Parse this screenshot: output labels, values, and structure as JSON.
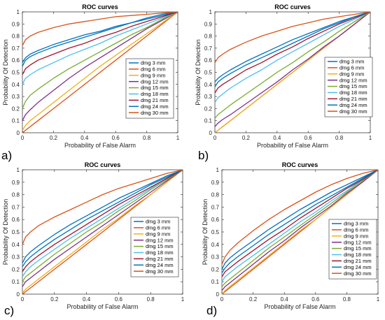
{
  "chart_data": [
    {
      "type": "line",
      "panel_label": "a)",
      "title": "ROC curves",
      "xlabel": "Probability of False Alarm",
      "ylabel": "Probability Of Detection",
      "xlim": [
        0,
        1
      ],
      "ylim": [
        0,
        1
      ],
      "xticks": [
        "0",
        "0.2",
        "0.4",
        "0.6",
        "0.8",
        "1"
      ],
      "yticks": [
        "0",
        "0.1",
        "0.2",
        "0.3",
        "0.4",
        "0.5",
        "0.6",
        "0.7",
        "0.8",
        "0.9",
        "1"
      ],
      "grid": false,
      "legend_position": "right",
      "x": [
        0,
        0.02,
        0.05,
        0.1,
        0.2,
        0.3,
        0.4,
        0.5,
        0.6,
        0.7,
        0.8,
        0.9,
        1
      ],
      "series": [
        {
          "name": "dmg 3 mm",
          "color": "#0072BD",
          "values": [
            0.55,
            0.6,
            0.63,
            0.66,
            0.71,
            0.75,
            0.79,
            0.83,
            0.87,
            0.91,
            0.94,
            0.97,
            1
          ]
        },
        {
          "name": "dmg 6 mm",
          "color": "#D95319",
          "values": [
            0,
            0.02,
            0.05,
            0.1,
            0.2,
            0.3,
            0.4,
            0.5,
            0.6,
            0.7,
            0.8,
            0.9,
            1
          ]
        },
        {
          "name": "dmg 9 mm",
          "color": "#EDB120",
          "values": [
            0.02,
            0.06,
            0.1,
            0.15,
            0.25,
            0.35,
            0.45,
            0.55,
            0.64,
            0.73,
            0.82,
            0.91,
            1
          ]
        },
        {
          "name": "dmg 12 mm",
          "color": "#7E2F8E",
          "values": [
            0.1,
            0.15,
            0.19,
            0.25,
            0.35,
            0.45,
            0.54,
            0.62,
            0.7,
            0.78,
            0.86,
            0.93,
            1
          ]
        },
        {
          "name": "dmg 15 mm",
          "color": "#77AC30",
          "values": [
            0.2,
            0.26,
            0.31,
            0.36,
            0.45,
            0.53,
            0.6,
            0.67,
            0.74,
            0.81,
            0.87,
            0.94,
            1
          ]
        },
        {
          "name": "dmg 18 mm",
          "color": "#4DBEEE",
          "values": [
            0.4,
            0.45,
            0.48,
            0.52,
            0.58,
            0.64,
            0.69,
            0.74,
            0.8,
            0.85,
            0.9,
            0.95,
            1
          ]
        },
        {
          "name": "dmg 21 mm",
          "color": "#A2142F",
          "values": [
            0.48,
            0.53,
            0.56,
            0.6,
            0.65,
            0.7,
            0.74,
            0.79,
            0.83,
            0.88,
            0.92,
            0.96,
            1
          ]
        },
        {
          "name": "dmg 24 mm",
          "color": "#0072BD",
          "values": [
            0.58,
            0.62,
            0.65,
            0.68,
            0.73,
            0.77,
            0.81,
            0.84,
            0.88,
            0.91,
            0.95,
            0.98,
            1
          ]
        },
        {
          "name": "dmg 30 mm",
          "color": "#D95319",
          "values": [
            0.72,
            0.77,
            0.8,
            0.83,
            0.87,
            0.9,
            0.92,
            0.94,
            0.96,
            0.97,
            0.98,
            0.99,
            1
          ]
        }
      ]
    },
    {
      "type": "line",
      "panel_label": "b)",
      "title": "ROC curves",
      "xlabel": "Probability of False Alarm",
      "ylabel": "Probability Of Detection",
      "xlim": [
        0,
        1
      ],
      "ylim": [
        0,
        1
      ],
      "xticks": [
        "0",
        "0.2",
        "0.4",
        "0.6",
        "0.8",
        "1"
      ],
      "yticks": [
        "0",
        "0.1",
        "0.2",
        "0.3",
        "0.4",
        "0.5",
        "0.6",
        "0.7",
        "0.8",
        "0.9",
        "1"
      ],
      "grid": false,
      "legend_position": "right",
      "x": [
        0,
        0.02,
        0.05,
        0.1,
        0.2,
        0.3,
        0.4,
        0.5,
        0.6,
        0.7,
        0.8,
        0.9,
        1
      ],
      "series": [
        {
          "name": "dmg 3 mm",
          "color": "#0072BD",
          "values": [
            0.42,
            0.45,
            0.48,
            0.52,
            0.59,
            0.65,
            0.71,
            0.77,
            0.82,
            0.87,
            0.92,
            0.96,
            1
          ]
        },
        {
          "name": "dmg 6 mm",
          "color": "#D95319",
          "values": [
            0,
            0.02,
            0.05,
            0.1,
            0.2,
            0.3,
            0.4,
            0.5,
            0.6,
            0.7,
            0.8,
            0.9,
            1
          ]
        },
        {
          "name": "dmg 9 mm",
          "color": "#EDB120",
          "values": [
            0,
            0.02,
            0.05,
            0.1,
            0.2,
            0.3,
            0.4,
            0.5,
            0.6,
            0.7,
            0.8,
            0.9,
            1
          ]
        },
        {
          "name": "dmg 12 mm",
          "color": "#7E2F8E",
          "values": [
            0.05,
            0.08,
            0.11,
            0.15,
            0.24,
            0.33,
            0.42,
            0.52,
            0.61,
            0.71,
            0.8,
            0.9,
            1
          ]
        },
        {
          "name": "dmg 15 mm",
          "color": "#77AC30",
          "values": [
            0.12,
            0.15,
            0.18,
            0.23,
            0.32,
            0.41,
            0.5,
            0.58,
            0.67,
            0.75,
            0.84,
            0.92,
            1
          ]
        },
        {
          "name": "dmg 18 mm",
          "color": "#4DBEEE",
          "values": [
            0.25,
            0.29,
            0.32,
            0.37,
            0.45,
            0.52,
            0.6,
            0.67,
            0.74,
            0.81,
            0.88,
            0.94,
            1
          ]
        },
        {
          "name": "dmg 21 mm",
          "color": "#A2142F",
          "values": [
            0.33,
            0.37,
            0.4,
            0.44,
            0.52,
            0.58,
            0.65,
            0.71,
            0.78,
            0.84,
            0.9,
            0.95,
            1
          ]
        },
        {
          "name": "dmg 24 mm",
          "color": "#0072BD",
          "values": [
            0.38,
            0.42,
            0.45,
            0.49,
            0.56,
            0.62,
            0.68,
            0.74,
            0.8,
            0.86,
            0.91,
            0.96,
            1
          ]
        },
        {
          "name": "dmg 30 mm",
          "color": "#D95319",
          "values": [
            0.58,
            0.62,
            0.65,
            0.69,
            0.75,
            0.8,
            0.84,
            0.88,
            0.91,
            0.94,
            0.96,
            0.98,
            1
          ]
        }
      ]
    },
    {
      "type": "line",
      "panel_label": "c)",
      "title": "ROC curves",
      "xlabel": "Probability of False Alarm",
      "ylabel": "Probability Of Detection",
      "xlim": [
        0,
        1
      ],
      "ylim": [
        0,
        1
      ],
      "xticks": [
        "0",
        "0.2",
        "0.4",
        "0.6",
        "0.8",
        "1"
      ],
      "yticks": [
        "0",
        "0.1",
        "0.2",
        "0.3",
        "0.4",
        "0.5",
        "0.6",
        "0.7",
        "0.8",
        "0.9",
        "1"
      ],
      "grid": false,
      "legend_position": "right",
      "x": [
        0,
        0.02,
        0.05,
        0.1,
        0.2,
        0.3,
        0.4,
        0.5,
        0.6,
        0.7,
        0.8,
        0.9,
        1
      ],
      "series": [
        {
          "name": "dmg 3 mm",
          "color": "#0072BD",
          "values": [
            0.25,
            0.3,
            0.34,
            0.39,
            0.48,
            0.56,
            0.63,
            0.7,
            0.77,
            0.83,
            0.89,
            0.95,
            1
          ]
        },
        {
          "name": "dmg 6 mm",
          "color": "#D95319",
          "values": [
            0,
            0.02,
            0.05,
            0.1,
            0.2,
            0.3,
            0.4,
            0.5,
            0.6,
            0.7,
            0.8,
            0.9,
            1
          ]
        },
        {
          "name": "dmg 9 mm",
          "color": "#EDB120",
          "values": [
            0.01,
            0.04,
            0.07,
            0.12,
            0.22,
            0.32,
            0.42,
            0.52,
            0.61,
            0.71,
            0.8,
            0.9,
            1
          ]
        },
        {
          "name": "dmg 12 mm",
          "color": "#7E2F8E",
          "values": [
            0.06,
            0.1,
            0.13,
            0.18,
            0.28,
            0.37,
            0.46,
            0.55,
            0.64,
            0.73,
            0.82,
            0.91,
            1
          ]
        },
        {
          "name": "dmg 15 mm",
          "color": "#77AC30",
          "values": [
            0.1,
            0.14,
            0.17,
            0.22,
            0.32,
            0.41,
            0.5,
            0.58,
            0.67,
            0.75,
            0.84,
            0.92,
            1
          ]
        },
        {
          "name": "dmg 18 mm",
          "color": "#4DBEEE",
          "values": [
            0.14,
            0.18,
            0.22,
            0.27,
            0.36,
            0.45,
            0.53,
            0.61,
            0.69,
            0.77,
            0.85,
            0.93,
            1
          ]
        },
        {
          "name": "dmg 21 mm",
          "color": "#A2142F",
          "values": [
            0.18,
            0.22,
            0.26,
            0.31,
            0.4,
            0.48,
            0.56,
            0.64,
            0.72,
            0.79,
            0.86,
            0.93,
            1
          ]
        },
        {
          "name": "dmg 24 mm",
          "color": "#0072BD",
          "values": [
            0.22,
            0.26,
            0.3,
            0.35,
            0.44,
            0.52,
            0.6,
            0.67,
            0.74,
            0.81,
            0.88,
            0.94,
            1
          ]
        },
        {
          "name": "dmg 30 mm",
          "color": "#D95319",
          "values": [
            0.4,
            0.46,
            0.5,
            0.55,
            0.62,
            0.68,
            0.74,
            0.8,
            0.85,
            0.89,
            0.93,
            0.97,
            1
          ]
        }
      ]
    },
    {
      "type": "line",
      "panel_label": "d)",
      "title": "ROC curves",
      "xlabel": "Probability of False Alarm",
      "ylabel": "Probability Of Detection",
      "xlim": [
        0,
        1
      ],
      "ylim": [
        0,
        1
      ],
      "xticks": [
        "0",
        "0.2",
        "0.4",
        "0.6",
        "0.8",
        "1"
      ],
      "yticks": [
        "0",
        "0.1",
        "0.2",
        "0.3",
        "0.4",
        "0.5",
        "0.6",
        "0.7",
        "0.8",
        "0.9",
        "1"
      ],
      "grid": false,
      "legend_position": "right",
      "x": [
        0,
        0.02,
        0.05,
        0.1,
        0.2,
        0.3,
        0.4,
        0.5,
        0.6,
        0.7,
        0.8,
        0.9,
        1
      ],
      "series": [
        {
          "name": "dmg 3 mm",
          "color": "#0072BD",
          "values": [
            0.2,
            0.25,
            0.29,
            0.34,
            0.43,
            0.52,
            0.6,
            0.68,
            0.75,
            0.82,
            0.88,
            0.94,
            1
          ]
        },
        {
          "name": "dmg 6 mm",
          "color": "#D95319",
          "values": [
            0,
            0.02,
            0.05,
            0.1,
            0.2,
            0.3,
            0.4,
            0.5,
            0.6,
            0.7,
            0.8,
            0.9,
            1
          ]
        },
        {
          "name": "dmg 9 mm",
          "color": "#EDB120",
          "values": [
            0,
            0.03,
            0.06,
            0.11,
            0.21,
            0.31,
            0.41,
            0.51,
            0.6,
            0.7,
            0.8,
            0.9,
            1
          ]
        },
        {
          "name": "dmg 12 mm",
          "color": "#7E2F8E",
          "values": [
            0.03,
            0.06,
            0.09,
            0.14,
            0.24,
            0.34,
            0.43,
            0.53,
            0.62,
            0.71,
            0.81,
            0.9,
            1
          ]
        },
        {
          "name": "dmg 15 mm",
          "color": "#77AC30",
          "values": [
            0.06,
            0.09,
            0.12,
            0.17,
            0.27,
            0.37,
            0.46,
            0.55,
            0.64,
            0.73,
            0.82,
            0.91,
            1
          ]
        },
        {
          "name": "dmg 18 mm",
          "color": "#4DBEEE",
          "values": [
            0.1,
            0.14,
            0.17,
            0.22,
            0.31,
            0.4,
            0.49,
            0.58,
            0.66,
            0.75,
            0.83,
            0.92,
            1
          ]
        },
        {
          "name": "dmg 21 mm",
          "color": "#A2142F",
          "values": [
            0.14,
            0.18,
            0.21,
            0.26,
            0.35,
            0.44,
            0.52,
            0.61,
            0.69,
            0.77,
            0.85,
            0.92,
            1
          ]
        },
        {
          "name": "dmg 24 mm",
          "color": "#0072BD",
          "values": [
            0.17,
            0.21,
            0.25,
            0.3,
            0.39,
            0.48,
            0.56,
            0.64,
            0.72,
            0.79,
            0.86,
            0.93,
            1
          ]
        },
        {
          "name": "dmg 30 mm",
          "color": "#D95319",
          "values": [
            0.24,
            0.3,
            0.35,
            0.41,
            0.51,
            0.6,
            0.68,
            0.75,
            0.82,
            0.88,
            0.93,
            0.97,
            1
          ]
        }
      ]
    }
  ]
}
